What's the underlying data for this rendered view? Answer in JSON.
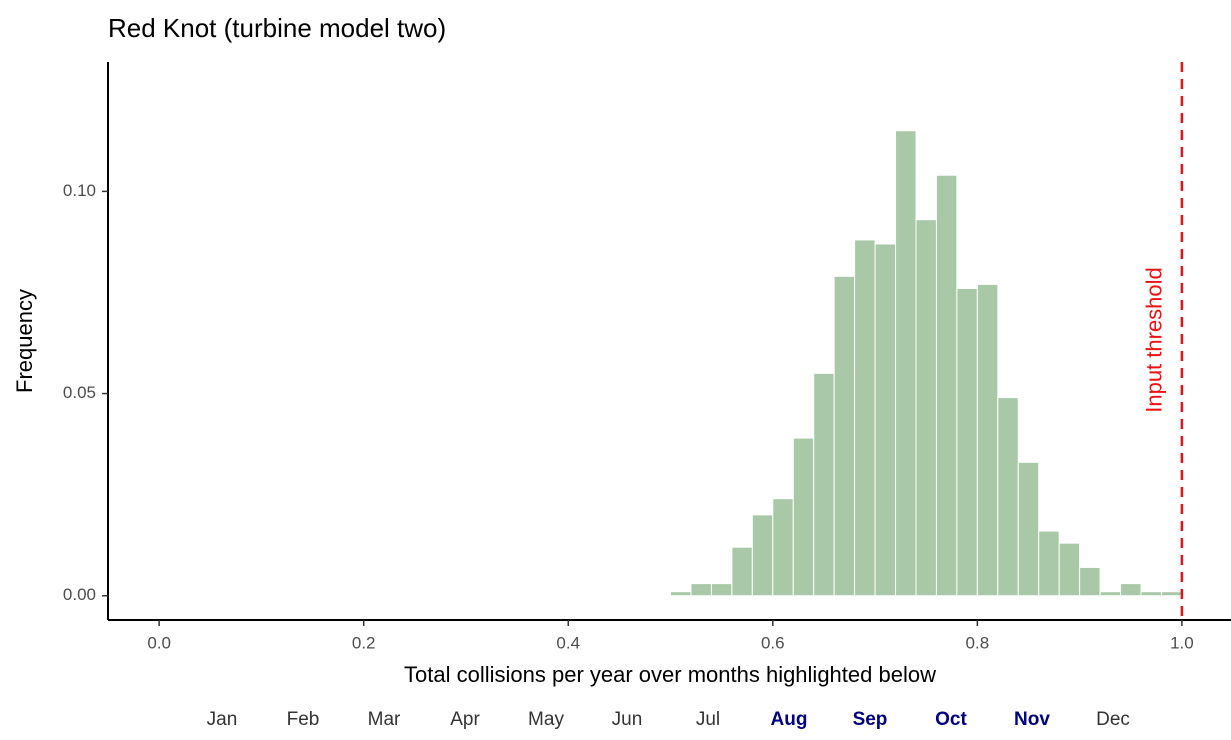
{
  "chart_data": {
    "type": "histogram",
    "title": "Red Knot (turbine model two)",
    "x_label": "Total collisions per year over months highlighted below",
    "y_label": "Frequency",
    "bins": [
      0.5,
      0.52,
      0.54,
      0.56,
      0.58,
      0.6,
      0.62,
      0.64,
      0.66,
      0.68,
      0.7,
      0.72,
      0.74,
      0.76,
      0.78,
      0.8,
      0.82,
      0.84,
      0.86,
      0.88,
      0.9,
      0.92,
      0.94,
      0.96,
      0.98,
      1.0
    ],
    "counts": [
      0.001,
      0.003,
      0.003,
      0.012,
      0.02,
      0.024,
      0.039,
      0.055,
      0.079,
      0.088,
      0.087,
      0.115,
      0.093,
      0.104,
      0.076,
      0.077,
      0.049,
      0.033,
      0.016,
      0.013,
      0.007,
      0.001,
      0.003,
      0.001,
      0.001
    ],
    "color": "#a8c8a8",
    "xlim": [
      -0.05,
      1.048
    ],
    "ylim": [
      -0.006,
      0.132
    ],
    "xticks": [
      {
        "value": 0,
        "label": "0.0"
      },
      0.2,
      0.4,
      0.6,
      0.8,
      {
        "value": 1,
        "label": "1.0"
      }
    ],
    "yticks": [
      {
        "value": 0,
        "label": "0.00"
      },
      {
        "value": 0.05,
        "label": "0.05"
      },
      {
        "value": 0.1,
        "label": "0.10"
      }
    ],
    "threshold": {
      "value": 1,
      "label": "Input threshold",
      "color": "#ee1111"
    },
    "months": [
      {
        "label": "Jan",
        "highlighted": false
      },
      {
        "label": "Feb",
        "highlighted": false
      },
      {
        "label": "Mar",
        "highlighted": false
      },
      {
        "label": "Apr",
        "highlighted": false
      },
      {
        "label": "May",
        "highlighted": false
      },
      {
        "label": "Jun",
        "highlighted": false
      },
      {
        "label": "Jul",
        "highlighted": false
      },
      {
        "label": "Aug",
        "highlighted": true
      },
      {
        "label": "Sep",
        "highlighted": true
      },
      {
        "label": "Oct",
        "highlighted": true
      },
      {
        "label": "Nov",
        "highlighted": true
      },
      {
        "label": "Dec",
        "highlighted": false
      }
    ]
  }
}
